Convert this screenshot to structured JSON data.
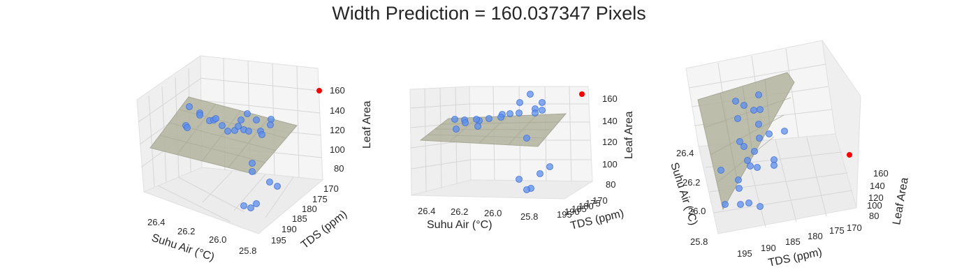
{
  "title": "Width Prediction = 160.037347 Pixels",
  "colors": {
    "observed": "#5b8ff0",
    "prediction": "#ff0000",
    "surface": "#b9b9a6",
    "pane": "#f2f2f2",
    "grid": "#d8d8d8"
  },
  "chart_data": [
    {
      "type": "scatter",
      "panel": "left",
      "xlabel": "Suhu Air (°C)",
      "ylabel": "TDS (ppm)",
      "zlabel": "Leaf Area",
      "xticks": [
        "26.4",
        "26.2",
        "26.0",
        "25.8"
      ],
      "yticks": [
        "170",
        "175",
        "180",
        "185",
        "190",
        "195"
      ],
      "zticks": [
        "80",
        "100",
        "120",
        "140",
        "160"
      ],
      "surface": "regression plane",
      "prediction_point": {
        "z": 160.04
      }
    },
    {
      "type": "scatter",
      "panel": "middle",
      "xlabel": "Suhu Air (°C)",
      "ylabel": "TDS (ppm)",
      "zlabel": "Leaf Area",
      "xticks": [
        "26.4",
        "26.2",
        "26.0",
        "25.8"
      ],
      "yticks": [
        "195",
        "190",
        "185",
        "180",
        "175",
        "170"
      ],
      "zticks": [
        "80",
        "100",
        "120",
        "140",
        "160"
      ],
      "surface": "regression plane",
      "prediction_point": {
        "z": 160.04
      }
    },
    {
      "type": "scatter",
      "panel": "right",
      "xlabel": "Suhu Air (°C)",
      "ylabel": "TDS (ppm)",
      "zlabel": "Leaf Area",
      "xticks": [
        "26.4",
        "26.2",
        "26.0",
        "25.8"
      ],
      "yticks": [
        "195",
        "190",
        "185",
        "180",
        "175",
        "170"
      ],
      "zticks": [
        "80",
        "100",
        "120",
        "140",
        "160"
      ],
      "surface": "regression plane",
      "prediction_point": {
        "z": 160.04
      }
    }
  ]
}
